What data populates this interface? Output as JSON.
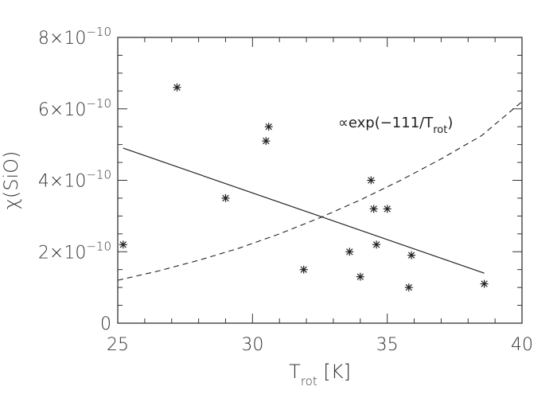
{
  "chart_data": {
    "type": "scatter",
    "title": "",
    "xlabel": {
      "main": "T",
      "sub": "rot",
      "unit": "[K]"
    },
    "ylabel": "χ(SiO)",
    "xlim": [
      25,
      40
    ],
    "ylim": [
      0,
      8e-10
    ],
    "x_ticks": [
      25,
      30,
      35,
      40
    ],
    "y_ticks": [
      {
        "value": 0,
        "label": "0"
      },
      {
        "value": 2e-10,
        "mantissa": "2×10",
        "exp": "−10"
      },
      {
        "value": 4e-10,
        "mantissa": "4×10",
        "exp": "−10"
      },
      {
        "value": 6e-10,
        "mantissa": "6×10",
        "exp": "−10"
      },
      {
        "value": 8e-10,
        "mantissa": "8×10",
        "exp": "−10"
      }
    ],
    "points": [
      {
        "x": 25.2,
        "y": 2.2e-10
      },
      {
        "x": 27.2,
        "y": 6.6e-10
      },
      {
        "x": 29.0,
        "y": 3.5e-10
      },
      {
        "x": 30.5,
        "y": 5.1e-10
      },
      {
        "x": 30.6,
        "y": 5.5e-10
      },
      {
        "x": 31.9,
        "y": 1.5e-10
      },
      {
        "x": 33.6,
        "y": 2e-10
      },
      {
        "x": 34.0,
        "y": 1.3e-10
      },
      {
        "x": 34.4,
        "y": 4e-10
      },
      {
        "x": 34.5,
        "y": 3.2e-10
      },
      {
        "x": 34.6,
        "y": 2.2e-10
      },
      {
        "x": 35.0,
        "y": 3.2e-10
      },
      {
        "x": 35.8,
        "y": 1e-10
      },
      {
        "x": 35.9,
        "y": 1.9e-10
      },
      {
        "x": 38.6,
        "y": 1.1e-10
      }
    ],
    "fit_line": {
      "x": [
        25.2,
        38.6
      ],
      "y": [
        4.9e-10,
        1.4e-10
      ]
    },
    "model_curve": {
      "x": [
        25,
        26.5,
        28,
        29.5,
        31,
        32.5,
        34,
        35.5,
        37,
        38.5,
        40
      ],
      "y": [
        1.2e-10,
        1.46e-10,
        1.76e-10,
        2.1e-10,
        2.5e-10,
        2.95e-10,
        3.45e-10,
        4e-10,
        4.6e-10,
        5.25e-10,
        6.2e-10
      ]
    },
    "annotation": {
      "prefix": "∝exp(−111/T",
      "sub": "rot",
      "suffix": ")"
    },
    "grid": false
  }
}
